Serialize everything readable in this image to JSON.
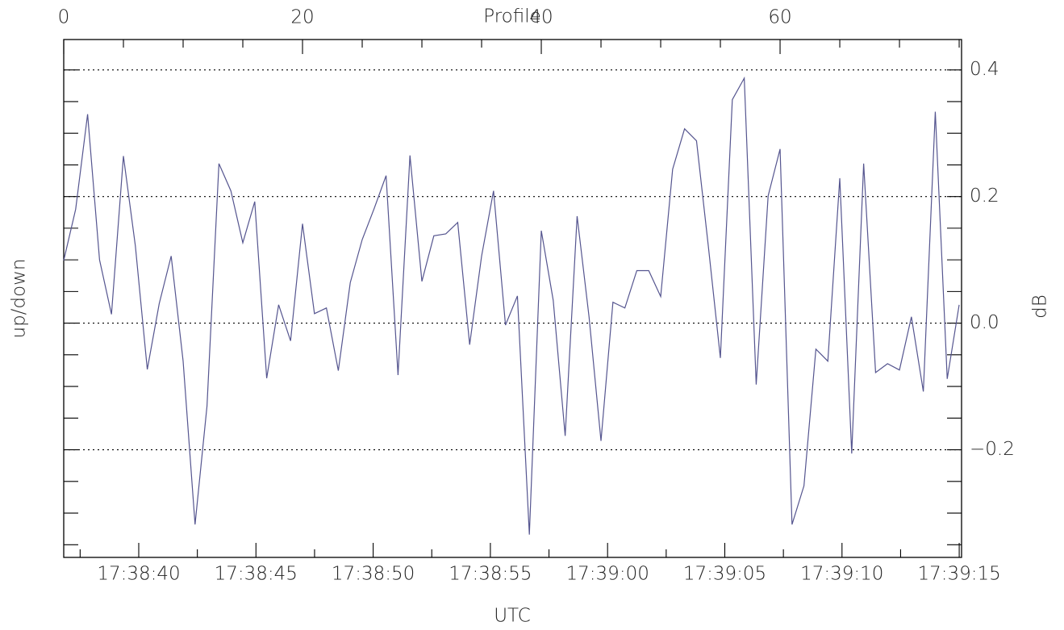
{
  "chart_data": {
    "type": "line",
    "xlabel": "Profile",
    "x2label": "UTC",
    "ylabel": "up/down",
    "y2label": "dB",
    "x": [
      0,
      1,
      2,
      3,
      4,
      5,
      6,
      7,
      8,
      9,
      10,
      11,
      12,
      13,
      14,
      15,
      16,
      17,
      18,
      19,
      20,
      21,
      22,
      23,
      24,
      25,
      26,
      27,
      28,
      29,
      30,
      31,
      32,
      33,
      34,
      35,
      36,
      37,
      38,
      39,
      40,
      41,
      42,
      43,
      44,
      45,
      46,
      47,
      48,
      49,
      50,
      51,
      52,
      53,
      54,
      55,
      56,
      57,
      58,
      59,
      60,
      61,
      62,
      63,
      64,
      65,
      66,
      67,
      68,
      69,
      70,
      71,
      72,
      73,
      74,
      75
    ],
    "series": [
      {
        "color": "#55558f",
        "values": [
          0.099,
          0.18,
          0.33,
          0.1,
          0.014,
          0.264,
          0.122,
          -0.073,
          0.031,
          0.106,
          -0.06,
          -0.318,
          -0.131,
          0.252,
          0.209,
          0.127,
          0.192,
          -0.087,
          0.029,
          -0.028,
          0.157,
          0.015,
          0.024,
          -0.075,
          0.064,
          0.132,
          0.181,
          0.233,
          -0.082,
          0.265,
          0.066,
          0.138,
          0.141,
          0.159,
          -0.034,
          0.106,
          0.209,
          -0.003,
          0.043,
          -0.334,
          0.146,
          0.036,
          -0.178,
          0.169,
          0.01,
          -0.186,
          0.033,
          0.024,
          0.083,
          0.083,
          0.042,
          0.243,
          0.307,
          0.288,
          0.12,
          -0.055,
          0.353,
          0.387,
          -0.097,
          0.201,
          0.275,
          -0.318,
          -0.257,
          -0.041,
          -0.06,
          0.229,
          -0.206,
          0.252,
          -0.078,
          -0.064,
          -0.074,
          0.01,
          -0.108,
          0.334,
          -0.088,
          0.029
        ]
      }
    ],
    "xlim": [
      0,
      75.2
    ],
    "xticks": [
      0,
      20,
      40,
      60
    ],
    "xminorticks": [
      5,
      10,
      15,
      25,
      30,
      35,
      45,
      50,
      55,
      65,
      70,
      75
    ],
    "x2lim": [
      63516.8,
      63555.1
    ],
    "x2ticks": [
      {
        "value": 63520,
        "label": "17:38:40"
      },
      {
        "value": 63525,
        "label": "17:38:45"
      },
      {
        "value": 63530,
        "label": "17:38:50"
      },
      {
        "value": 63535,
        "label": "17:38:55"
      },
      {
        "value": 63540,
        "label": "17:39:00"
      },
      {
        "value": 63545,
        "label": "17:39:05"
      },
      {
        "value": 63550,
        "label": "17:39:10"
      },
      {
        "value": 63555,
        "label": "17:39:15"
      }
    ],
    "x2minorticks": [
      63517.5,
      63522.5,
      63527.5,
      63532.5,
      63537.5,
      63542.5,
      63547.5,
      63552.5
    ],
    "ylim": [
      -0.37,
      0.448
    ],
    "yticks": [
      0.4,
      0.2,
      {
        "value": 0,
        "label": "0.0"
      },
      {
        "value": -0.2,
        "label": "−0.2"
      }
    ],
    "yminorticks": [
      -0.35,
      -0.3,
      -0.25,
      -0.15,
      -0.1,
      -0.05,
      0.05,
      0.1,
      0.15,
      0.25,
      0.3,
      0.35
    ],
    "grid": true
  }
}
